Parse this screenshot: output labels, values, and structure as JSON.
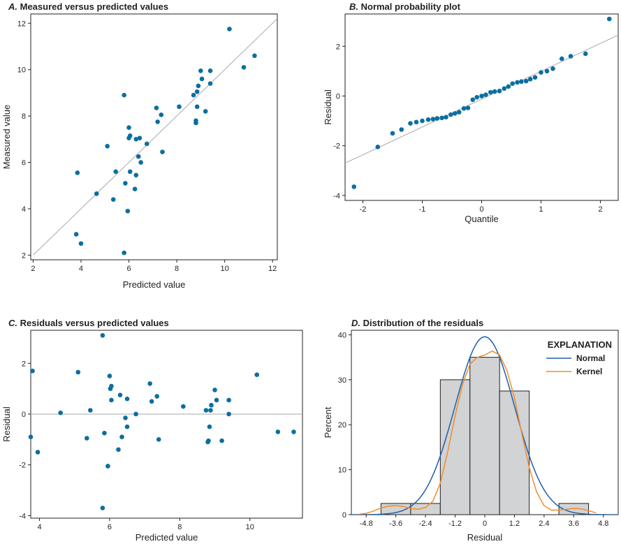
{
  "chart_data": [
    {
      "id": "A",
      "type": "scatter",
      "title_letter": "A.",
      "title": "Measured versus predicted values",
      "xlabel": "Predicted value",
      "ylabel": "Measured value",
      "xlim": [
        1.9,
        12.2
      ],
      "ylim": [
        1.8,
        12.4
      ],
      "xticks": [
        2,
        4,
        6,
        8,
        10,
        12
      ],
      "yticks": [
        2,
        4,
        6,
        8,
        10,
        12
      ],
      "reference_line": {
        "x": [
          2,
          12.4
        ],
        "y": [
          2,
          12.4
        ]
      },
      "points": [
        [
          3.8,
          2.9
        ],
        [
          4.0,
          2.5
        ],
        [
          3.85,
          5.55
        ],
        [
          4.65,
          4.65
        ],
        [
          5.1,
          6.7
        ],
        [
          5.35,
          4.4
        ],
        [
          5.45,
          5.6
        ],
        [
          5.8,
          8.9
        ],
        [
          5.85,
          5.1
        ],
        [
          5.8,
          2.1
        ],
        [
          5.95,
          3.9
        ],
        [
          6.0,
          7.05
        ],
        [
          6.05,
          7.15
        ],
        [
          6.0,
          7.5
        ],
        [
          6.05,
          5.6
        ],
        [
          6.25,
          4.85
        ],
        [
          6.3,
          7.0
        ],
        [
          6.3,
          5.45
        ],
        [
          6.4,
          6.25
        ],
        [
          6.45,
          7.05
        ],
        [
          6.5,
          6.0
        ],
        [
          6.75,
          6.8
        ],
        [
          7.15,
          8.35
        ],
        [
          7.2,
          7.75
        ],
        [
          7.35,
          8.05
        ],
        [
          7.4,
          6.45
        ],
        [
          8.1,
          8.4
        ],
        [
          8.7,
          8.9
        ],
        [
          8.8,
          7.7
        ],
        [
          8.8,
          7.8
        ],
        [
          8.85,
          9.05
        ],
        [
          8.85,
          8.4
        ],
        [
          8.9,
          9.3
        ],
        [
          9.0,
          9.95
        ],
        [
          9.05,
          9.6
        ],
        [
          9.2,
          8.2
        ],
        [
          9.4,
          9.95
        ],
        [
          9.4,
          9.4
        ],
        [
          10.2,
          11.75
        ],
        [
          10.8,
          10.1
        ],
        [
          11.25,
          10.6
        ]
      ]
    },
    {
      "id": "B",
      "type": "scatter",
      "title_letter": "B.",
      "title": "Normal probability plot",
      "xlabel": "Quantile",
      "ylabel": "Residual",
      "xlim": [
        -2.3,
        2.3
      ],
      "ylim": [
        -4.2,
        3.3
      ],
      "xticks": [
        -2,
        -1,
        0,
        1,
        2
      ],
      "yticks": [
        -4,
        -2,
        0,
        2
      ],
      "reference_line": {
        "x": [
          -2.3,
          2.3
        ],
        "y": [
          -2.7,
          2.45
        ]
      },
      "points": [
        [
          -2.15,
          -3.65
        ],
        [
          -1.75,
          -2.05
        ],
        [
          -1.5,
          -1.5
        ],
        [
          -1.35,
          -1.35
        ],
        [
          -1.2,
          -1.1
        ],
        [
          -1.1,
          -1.05
        ],
        [
          -1.0,
          -1.0
        ],
        [
          -0.9,
          -0.95
        ],
        [
          -0.82,
          -0.93
        ],
        [
          -0.75,
          -0.9
        ],
        [
          -0.67,
          -0.88
        ],
        [
          -0.6,
          -0.85
        ],
        [
          -0.52,
          -0.75
        ],
        [
          -0.45,
          -0.7
        ],
        [
          -0.38,
          -0.65
        ],
        [
          -0.3,
          -0.5
        ],
        [
          -0.23,
          -0.48
        ],
        [
          -0.15,
          -0.15
        ],
        [
          -0.08,
          -0.05
        ],
        [
          0.0,
          0.0
        ],
        [
          0.07,
          0.05
        ],
        [
          0.15,
          0.15
        ],
        [
          0.22,
          0.18
        ],
        [
          0.3,
          0.2
        ],
        [
          0.38,
          0.3
        ],
        [
          0.45,
          0.38
        ],
        [
          0.52,
          0.5
        ],
        [
          0.6,
          0.55
        ],
        [
          0.67,
          0.58
        ],
        [
          0.75,
          0.6
        ],
        [
          0.82,
          0.68
        ],
        [
          0.9,
          0.75
        ],
        [
          1.0,
          0.95
        ],
        [
          1.1,
          1.0
        ],
        [
          1.2,
          1.1
        ],
        [
          1.35,
          1.5
        ],
        [
          1.5,
          1.6
        ],
        [
          1.75,
          1.7
        ],
        [
          2.15,
          3.1
        ]
      ]
    },
    {
      "id": "C",
      "type": "scatter",
      "title_letter": "C.",
      "title": "Residuals versus predicted values",
      "xlabel": "Predicted value",
      "ylabel": "Residual",
      "xlim": [
        3.75,
        11.5
      ],
      "ylim": [
        -4.1,
        3.3
      ],
      "xticks": [
        4,
        6,
        8,
        10
      ],
      "yticks": [
        -4,
        -2,
        0,
        2
      ],
      "reference_line": {
        "y": 0
      },
      "points": [
        [
          3.75,
          -0.9
        ],
        [
          3.8,
          1.7
        ],
        [
          3.95,
          -1.5
        ],
        [
          4.6,
          0.05
        ],
        [
          5.1,
          1.65
        ],
        [
          5.35,
          -0.95
        ],
        [
          5.45,
          0.15
        ],
        [
          5.8,
          3.1
        ],
        [
          5.85,
          -0.75
        ],
        [
          5.8,
          -3.7
        ],
        [
          5.95,
          -2.05
        ],
        [
          6.0,
          1.5
        ],
        [
          6.02,
          1.0
        ],
        [
          6.05,
          1.1
        ],
        [
          6.05,
          0.55
        ],
        [
          6.25,
          -1.4
        ],
        [
          6.3,
          0.75
        ],
        [
          6.35,
          -0.9
        ],
        [
          6.45,
          -0.15
        ],
        [
          6.5,
          0.6
        ],
        [
          6.5,
          -0.5
        ],
        [
          6.75,
          0.0
        ],
        [
          7.15,
          1.2
        ],
        [
          7.2,
          0.5
        ],
        [
          7.35,
          0.7
        ],
        [
          7.4,
          -1.0
        ],
        [
          8.1,
          0.3
        ],
        [
          8.75,
          0.15
        ],
        [
          8.8,
          -1.1
        ],
        [
          8.82,
          -1.05
        ],
        [
          8.85,
          -0.5
        ],
        [
          8.88,
          0.15
        ],
        [
          8.9,
          0.35
        ],
        [
          9.0,
          0.95
        ],
        [
          9.05,
          0.55
        ],
        [
          9.2,
          -1.05
        ],
        [
          9.4,
          0.55
        ],
        [
          9.4,
          0.0
        ],
        [
          10.2,
          1.55
        ],
        [
          10.8,
          -0.7
        ],
        [
          11.25,
          -0.7
        ]
      ]
    },
    {
      "id": "D",
      "type": "histogram",
      "title_letter": "D.",
      "title": "Distribution of the residuals",
      "xlabel": "Residual",
      "ylabel": "Percent",
      "xlim": [
        -5.4,
        5.4
      ],
      "ylim": [
        0,
        41
      ],
      "xticks": [
        "-4.8",
        "-3.6",
        "-2.4",
        "-1.2",
        "0",
        "1.2",
        "2.4",
        "3.6",
        "4.8"
      ],
      "yticks": [
        0,
        10,
        20,
        30,
        40
      ],
      "bins": [
        {
          "x0": -4.2,
          "x1": -3.0,
          "percent": 2.5
        },
        {
          "x0": -3.0,
          "x1": -1.8,
          "percent": 2.5
        },
        {
          "x0": -1.8,
          "x1": -0.6,
          "percent": 30
        },
        {
          "x0": -0.6,
          "x1": 0.6,
          "percent": 35
        },
        {
          "x0": 0.6,
          "x1": 1.8,
          "percent": 27.5
        },
        {
          "x0": 1.8,
          "x1": 3.0,
          "percent": 0
        },
        {
          "x0": 3.0,
          "x1": 4.2,
          "percent": 2.5
        }
      ],
      "normal_curve": {
        "mean": 0,
        "sd": 1.21,
        "bin_width": 1.2
      },
      "kernel_curve": {
        "x": [
          -5.1,
          -4.8,
          -4.5,
          -4.2,
          -3.9,
          -3.6,
          -3.3,
          -3.0,
          -2.7,
          -2.4,
          -2.1,
          -1.8,
          -1.5,
          -1.2,
          -0.9,
          -0.6,
          -0.3,
          0.0,
          0.3,
          0.6,
          0.9,
          1.2,
          1.5,
          1.8,
          2.1,
          2.4,
          2.7,
          3.0,
          3.3,
          3.6,
          3.9,
          4.2,
          4.5
        ],
        "y": [
          0.1,
          0.3,
          0.8,
          1.5,
          1.9,
          2.0,
          1.8,
          1.4,
          1.2,
          1.6,
          3.0,
          7.0,
          14.0,
          22.0,
          29.0,
          33.5,
          35.0,
          35.5,
          36.4,
          35.5,
          32.0,
          26.0,
          18.0,
          10.5,
          5.0,
          2.0,
          1.0,
          1.0,
          1.2,
          1.4,
          1.3,
          0.9,
          0.4
        ]
      },
      "legend": {
        "title": "EXPLANATION",
        "entries": [
          {
            "label": "Normal",
            "color": "#1f5fa8"
          },
          {
            "label": "Kernel",
            "color": "#f28c28"
          }
        ]
      }
    }
  ],
  "colors": {
    "points": "#0b6ea0",
    "frame": "#231f20",
    "reference": "#a7a9ac",
    "bar_fill": "#d1d3d4",
    "bar_stroke": "#231f20",
    "normal": "#1f5fa8",
    "kernel": "#f28c28"
  }
}
